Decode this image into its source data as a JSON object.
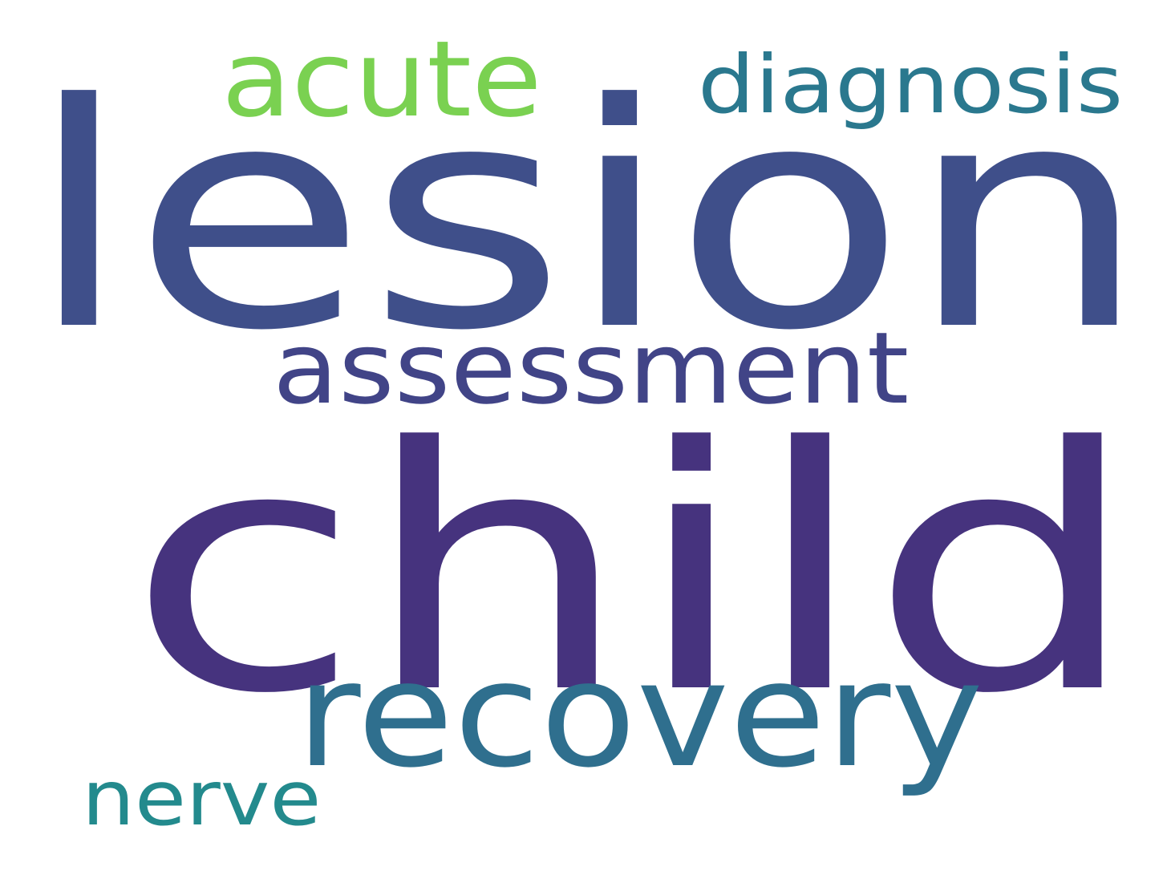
{
  "words": [
    {
      "text": "lesion",
      "color": "#3f4f8a"
    },
    {
      "text": "child",
      "color": "#46337e"
    },
    {
      "text": "recovery",
      "color": "#2f6f8e"
    },
    {
      "text": "assessment",
      "color": "#414487"
    },
    {
      "text": "acute",
      "color": "#7ad151"
    },
    {
      "text": "diagnosis",
      "color": "#2a788e"
    },
    {
      "text": "nerve",
      "color": "#238a8d"
    }
  ]
}
